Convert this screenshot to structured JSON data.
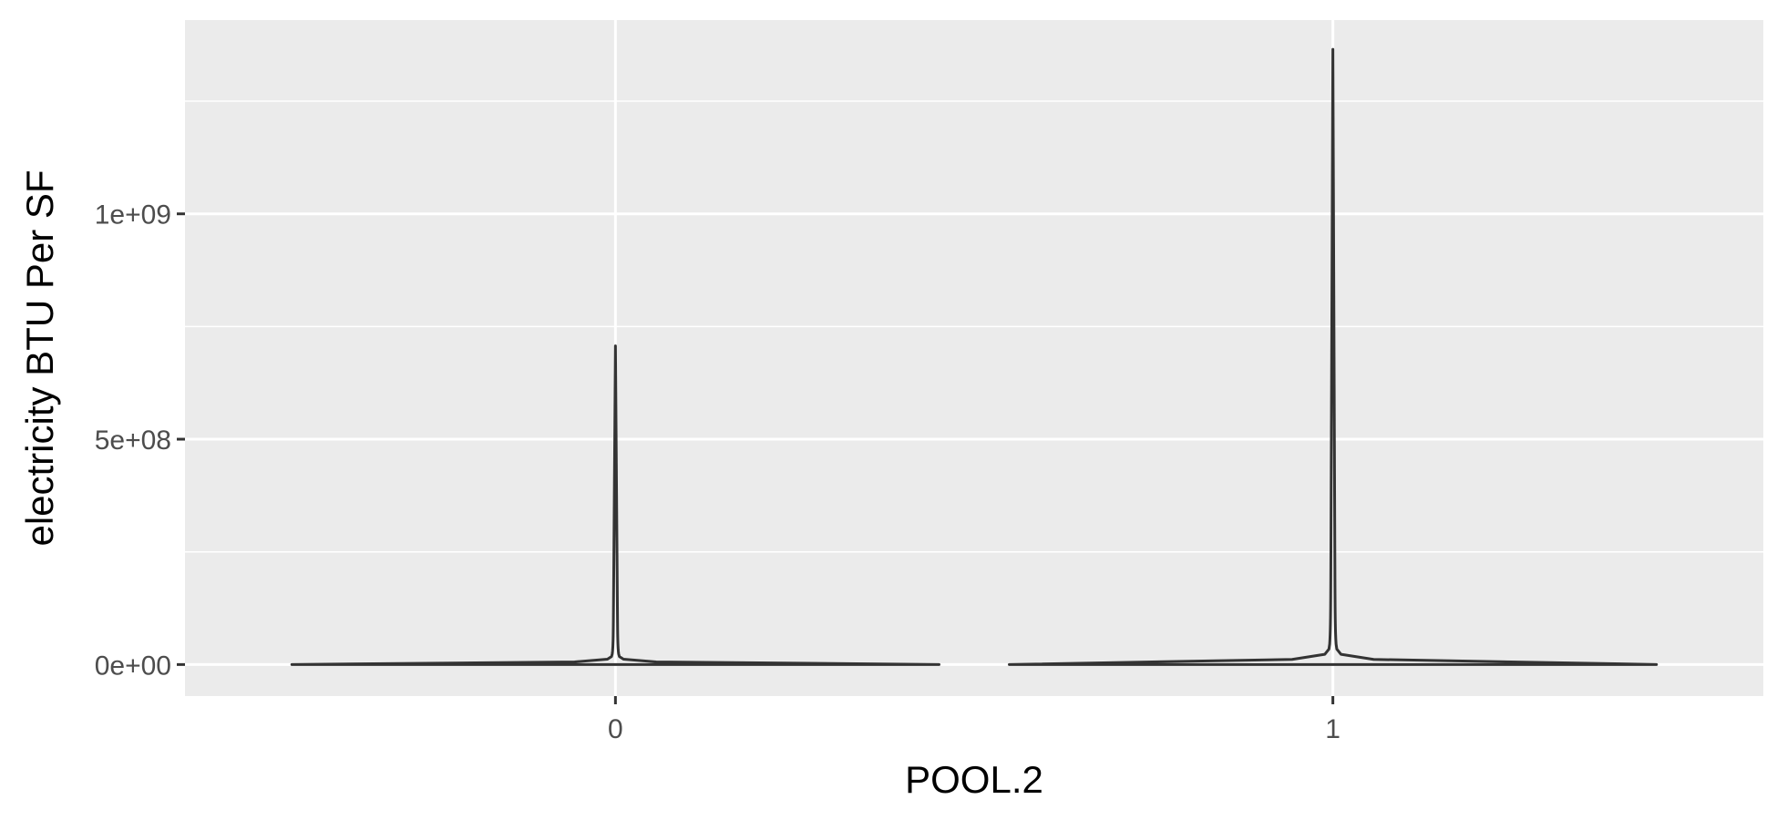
{
  "chart_data": {
    "type": "violin",
    "title": "",
    "xlabel": "POOL.2",
    "ylabel": "electricity BTU Per SF",
    "categories": [
      "0",
      "1"
    ],
    "y_ticks": [
      {
        "value": 0,
        "label": "0e+00"
      },
      {
        "value": 500000000,
        "label": "5e+08"
      },
      {
        "value": 1000000000,
        "label": "1e+09"
      }
    ],
    "ylim": [
      -70000000,
      1430000000
    ],
    "grid": true,
    "legend": "none",
    "violins": [
      {
        "category": "0",
        "min": 0,
        "max": 707000000
      },
      {
        "category": "1",
        "min": 0,
        "max": 1365000000
      }
    ],
    "colors": {
      "panel": "#EBEBEB",
      "grid": "#FFFFFF",
      "outline": "#333333",
      "tick_text": "#4D4D4D"
    }
  }
}
